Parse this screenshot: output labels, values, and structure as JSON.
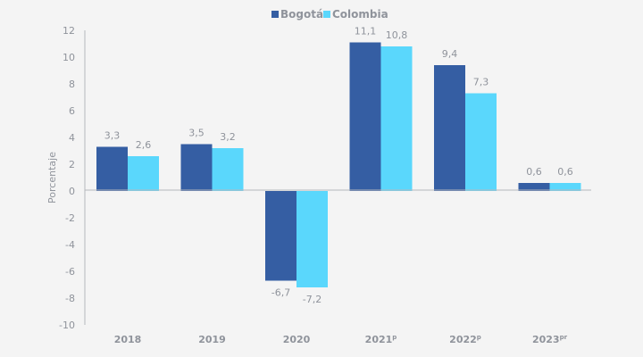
{
  "chart_data": {
    "type": "bar",
    "title": "",
    "xlabel": "",
    "ylabel": "Porcentaje",
    "ylim": [
      -10,
      12
    ],
    "yticks": [
      12,
      10,
      8,
      6,
      4,
      2,
      0,
      -2,
      -4,
      -6,
      -8,
      -10
    ],
    "grid": false,
    "legend_position": "top-center",
    "categories": [
      {
        "label": "2018",
        "sup": ""
      },
      {
        "label": "2019",
        "sup": ""
      },
      {
        "label": "2020",
        "sup": ""
      },
      {
        "label": "2021",
        "sup": "p"
      },
      {
        "label": "2022",
        "sup": "p"
      },
      {
        "label": "2023",
        "sup": "pr"
      }
    ],
    "series": [
      {
        "name": "Bogotá",
        "color": "#355ea3",
        "values": [
          3.3,
          3.5,
          -6.7,
          11.1,
          9.4,
          0.6
        ],
        "labels": [
          "3,3",
          "3,5",
          "-6,7",
          "11,1",
          "9,4",
          "0,6"
        ]
      },
      {
        "name": "Colombia",
        "color": "#5ad7fc",
        "values": [
          2.6,
          3.2,
          -7.2,
          10.8,
          7.3,
          0.6
        ],
        "labels": [
          "2,6",
          "3,2",
          "-7,2",
          "10,8",
          "7,3",
          "0,6"
        ]
      }
    ]
  }
}
